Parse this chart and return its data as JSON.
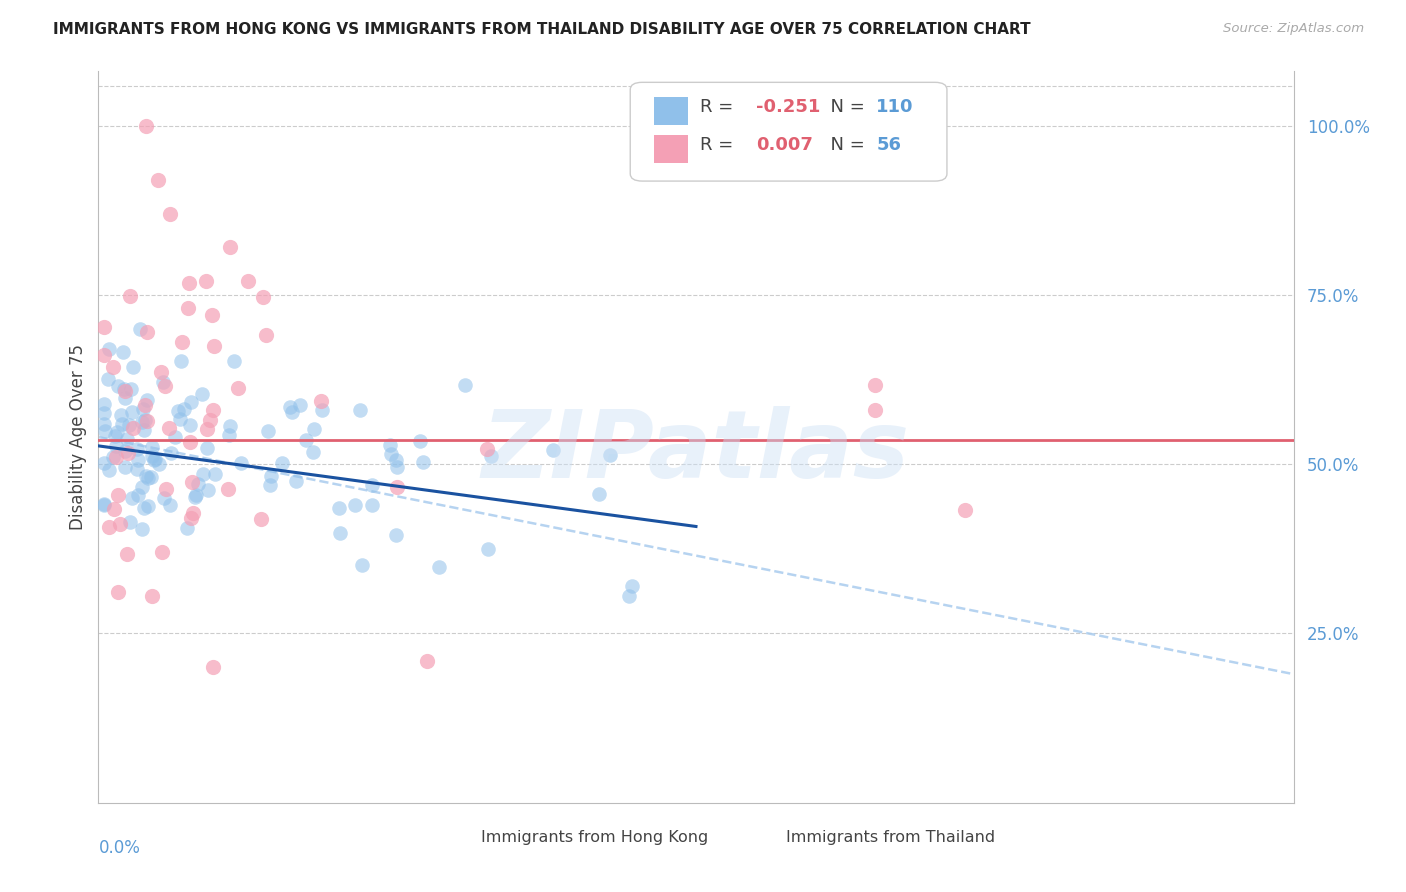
{
  "title": "IMMIGRANTS FROM HONG KONG VS IMMIGRANTS FROM THAILAND DISABILITY AGE OVER 75 CORRELATION CHART",
  "source": "Source: ZipAtlas.com",
  "ylabel": "Disability Age Over 75",
  "ylabel_right_ticks": [
    "100.0%",
    "75.0%",
    "50.0%",
    "25.0%"
  ],
  "ylabel_right_vals": [
    1.0,
    0.75,
    0.5,
    0.25
  ],
  "xmin": 0.0,
  "xmax": 0.2,
  "ymin": 0.0,
  "ymax": 1.08,
  "hk_color": "#90c0ea",
  "th_color": "#f4a0b5",
  "hk_R": -0.251,
  "hk_N": 110,
  "th_R": 0.007,
  "th_N": 56,
  "watermark": "ZIPatlas",
  "grid_color": "#cccccc",
  "axis_label_color": "#5b9bd5",
  "hk_trend_color": "#1a52a0",
  "th_trend_color": "#e06070",
  "dashed_color": "#aaccee",
  "title_color": "#222222",
  "source_color": "#aaaaaa",
  "legend_text_color_R": "#e06070",
  "legend_text_color_N": "#5b9bd5"
}
